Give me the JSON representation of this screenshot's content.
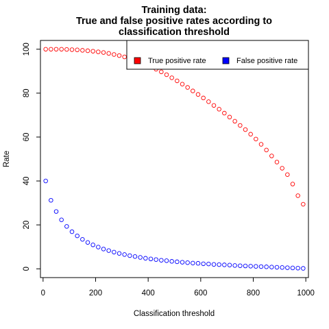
{
  "chart_data": {
    "type": "scatter",
    "title": [
      "Training data:",
      "True and false positive rates according to",
      "classification threshold"
    ],
    "xlabel": "Classification threshold",
    "ylabel": "Rate",
    "xlim": [
      -10,
      1010
    ],
    "ylim": [
      -4,
      104
    ],
    "xticks": [
      0,
      200,
      400,
      600,
      800,
      1000
    ],
    "yticks": [
      0,
      20,
      40,
      60,
      80,
      100
    ],
    "legend": {
      "position": "top-right"
    },
    "x": [
      10,
      30,
      50,
      70,
      90,
      110,
      130,
      150,
      170,
      190,
      210,
      230,
      250,
      270,
      290,
      310,
      330,
      350,
      370,
      390,
      410,
      430,
      450,
      470,
      490,
      510,
      530,
      550,
      570,
      590,
      610,
      630,
      650,
      670,
      690,
      710,
      730,
      750,
      770,
      790,
      810,
      830,
      850,
      870,
      890,
      910,
      930,
      950,
      970,
      990
    ],
    "series": [
      {
        "name": "True positive rate",
        "color": "#ff0000",
        "values": [
          100,
          100,
          100,
          100,
          99.9,
          99.8,
          99.7,
          99.5,
          99.3,
          99.1,
          98.8,
          98.5,
          98.1,
          97.6,
          97.1,
          96.5,
          95.8,
          95.0,
          94.1,
          93.1,
          92.1,
          90.9,
          89.7,
          88.4,
          87.0,
          85.6,
          84.1,
          82.6,
          81.0,
          79.4,
          77.8,
          76.1,
          74.4,
          72.7,
          70.9,
          69.1,
          67.2,
          65.3,
          63.4,
          61.3,
          59.1,
          56.7,
          54.1,
          51.4,
          48.6,
          45.8,
          42.9,
          38.6,
          33.3,
          29.4
        ]
      },
      {
        "name": "False positive rate",
        "color": "#0000ff",
        "values": [
          40,
          31.2,
          26.1,
          22.3,
          19.3,
          16.9,
          15.0,
          13.4,
          12.0,
          10.9,
          9.9,
          9.0,
          8.3,
          7.6,
          7.0,
          6.5,
          6.0,
          5.6,
          5.2,
          4.8,
          4.5,
          4.2,
          3.9,
          3.7,
          3.4,
          3.2,
          3.0,
          2.8,
          2.6,
          2.5,
          2.3,
          2.2,
          2.0,
          1.9,
          1.8,
          1.7,
          1.5,
          1.4,
          1.3,
          1.2,
          1.1,
          1.0,
          0.9,
          0.8,
          0.7,
          0.6,
          0.5,
          0.4,
          0.3,
          0.2
        ]
      }
    ]
  }
}
